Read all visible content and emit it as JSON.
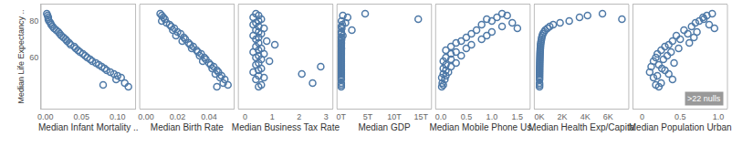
{
  "chart_data": {
    "type": "scatter",
    "color": "#4e79a7",
    "marker": "circle-open",
    "grid": false,
    "y_label": "Median Life Expectancy ..",
    "ylim": [
      32,
      89
    ],
    "yticks": [
      60,
      80
    ],
    "y": [
      84,
      83,
      82,
      81,
      80,
      79,
      78,
      77,
      76,
      75,
      74,
      73,
      72,
      71,
      70,
      69,
      68,
      67,
      66,
      65,
      64,
      63,
      62,
      61,
      60,
      59,
      58,
      57,
      56,
      55,
      54,
      53,
      52,
      51,
      50,
      49,
      48,
      46,
      45,
      44
    ],
    "annotations": [
      ">22 nulls"
    ],
    "panels": [
      {
        "x_label": "Median Infant Mortality ..",
        "xlim": [
          -0.006,
          0.125
        ],
        "xticks": [
          {
            "value": 0,
            "label": "0.00"
          },
          {
            "value": 0.05,
            "label": "0.05"
          },
          {
            "value": 0.1,
            "label": "0.10"
          }
        ],
        "x": [
          0.002,
          0.003,
          0.004,
          0.004,
          0.005,
          0.007,
          0.008,
          0.01,
          0.012,
          0.015,
          0.018,
          0.02,
          0.022,
          0.025,
          0.028,
          0.03,
          0.033,
          0.035,
          0.04,
          0.042,
          0.045,
          0.048,
          0.052,
          0.055,
          0.058,
          0.062,
          0.065,
          0.07,
          0.074,
          0.078,
          0.082,
          0.085,
          0.09,
          0.095,
          0.1,
          0.105,
          0.098,
          0.11,
          0.08,
          0.115
        ]
      },
      {
        "x_label": "Median Birth Rate",
        "xlim": [
          -0.004,
          0.056
        ],
        "xticks": [
          {
            "value": 0,
            "label": "0.00"
          },
          {
            "value": 0.02,
            "label": "0.02"
          },
          {
            "value": 0.04,
            "label": "0.04"
          }
        ],
        "x": [
          0.009,
          0.01,
          0.011,
          0.012,
          0.01,
          0.013,
          0.015,
          0.016,
          0.018,
          0.017,
          0.02,
          0.022,
          0.019,
          0.024,
          0.025,
          0.023,
          0.027,
          0.028,
          0.03,
          0.029,
          0.032,
          0.033,
          0.035,
          0.034,
          0.037,
          0.038,
          0.036,
          0.04,
          0.041,
          0.043,
          0.042,
          0.045,
          0.046,
          0.044,
          0.048,
          0.047,
          0.05,
          0.049,
          0.052,
          0.045
        ]
      },
      {
        "x_label": "Median Business Tax Rate",
        "xlim": [
          -0.25,
          3.25
        ],
        "xticks": [
          0,
          1,
          2,
          3
        ],
        "x": [
          0.4,
          0.5,
          0.3,
          0.6,
          0.5,
          0.4,
          0.3,
          0.5,
          0.7,
          0.4,
          0.5,
          0.6,
          0.3,
          0.5,
          0.4,
          0.8,
          0.5,
          1.1,
          0.4,
          0.6,
          0.5,
          0.3,
          0.7,
          0.5,
          0.4,
          0.6,
          0.9,
          0.5,
          0.4,
          2.8,
          0.6,
          0.5,
          0.3,
          2.1,
          0.5,
          0.7,
          0.4,
          2.5,
          0.6,
          0.5
        ]
      },
      {
        "x_label": "Median GDP",
        "xlim": [
          -800000000000,
          17000000000000
        ],
        "xticks": [
          {
            "value": 0,
            "label": "0T"
          },
          {
            "value": 5000000000000,
            "label": "5T"
          },
          {
            "value": 10000000000000,
            "label": "10T"
          },
          {
            "value": 15000000000000,
            "label": "15T"
          }
        ],
        "x": [
          4500000000000,
          300000000000,
          1200000000000,
          14500000000000,
          50000000000,
          800000000000,
          200000000000,
          20000000000,
          100000000000,
          2000000000000,
          10000000000,
          40000000000,
          300000000000,
          10000000000,
          60000000000,
          5000000000,
          20000000000,
          10000000000,
          4000000000,
          30000000000,
          8000000000,
          2000000000,
          10000000000,
          3000000000,
          1000000000,
          5000000000,
          2000000000,
          1000000000,
          4000000000,
          2000000000,
          1000000000,
          3000000000,
          1000000000,
          2000000000,
          1000000000,
          1000000000,
          2000000000,
          1000000000,
          1000000000,
          1000000000
        ]
      },
      {
        "x_label": "Median Mobile Phone Us..",
        "xlim": [
          -0.1,
          1.75
        ],
        "xticks": [
          {
            "value": 0,
            "label": "0.0"
          },
          0.5,
          {
            "value": 1,
            "label": "1.0"
          },
          1.5
        ],
        "x": [
          1.2,
          1.3,
          1.1,
          0.9,
          1.0,
          1.4,
          0.8,
          1.2,
          1.5,
          0.7,
          1.0,
          0.6,
          0.9,
          0.5,
          0.8,
          0.4,
          0.3,
          0.6,
          0.2,
          0.5,
          0.1,
          0.3,
          0.2,
          0.4,
          0.1,
          0.2,
          0.05,
          0.3,
          0.1,
          0.2,
          0.05,
          0.1,
          0.15,
          0.05,
          0.1,
          0.02,
          0.08,
          0.03,
          0.05,
          0.02
        ]
      },
      {
        "x_label": "Median Health Exp/Capita",
        "xlim": [
          -450,
          7800
        ],
        "xticks": [
          {
            "value": 0,
            "label": "0K"
          },
          {
            "value": 2000,
            "label": "2K"
          },
          {
            "value": 4000,
            "label": "4K"
          },
          {
            "value": 6000,
            "label": "6K"
          }
        ],
        "x": [
          5500,
          4200,
          3500,
          7200,
          2600,
          1800,
          1200,
          900,
          700,
          500,
          400,
          300,
          250,
          200,
          180,
          150,
          120,
          100,
          90,
          80,
          70,
          60,
          55,
          50,
          45,
          40,
          35,
          30,
          28,
          25,
          22,
          20,
          18,
          15,
          14,
          12,
          10,
          9,
          12,
          8
        ]
      },
      {
        "x_label": "Median Population Urban",
        "xlim": [
          -0.12,
          1.12
        ],
        "xticks": [
          0,
          0.5,
          {
            "value": 1,
            "label": "1.0"
          }
        ],
        "x": [
          0.92,
          0.85,
          0.8,
          0.81,
          0.75,
          0.7,
          0.88,
          0.65,
          0.95,
          0.55,
          0.72,
          0.6,
          0.45,
          0.68,
          0.5,
          0.4,
          0.62,
          0.35,
          0.3,
          0.48,
          0.25,
          0.38,
          0.2,
          0.33,
          0.18,
          0.28,
          0.15,
          0.42,
          0.22,
          0.12,
          0.26,
          0.3,
          0.1,
          0.35,
          0.2,
          0.15,
          0.4,
          0.25,
          0.18,
          0.22
        ]
      }
    ]
  }
}
